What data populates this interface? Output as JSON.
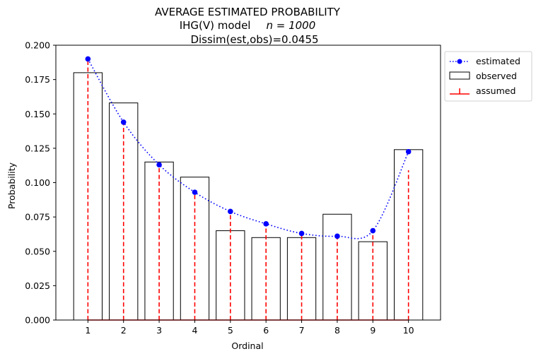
{
  "chart_data": {
    "type": "bar",
    "title_lines": [
      "AVERAGE ESTIMATED PROBABILITY",
      "IHG(V) model",
      "n = 1000",
      "Dissim(est,obs)=0.0455"
    ],
    "xlabel": "Ordinal",
    "ylabel": "Probability",
    "x": [
      1,
      2,
      3,
      4,
      5,
      6,
      7,
      8,
      9,
      10
    ],
    "x_ticks": [
      "1",
      "2",
      "3",
      "4",
      "5",
      "6",
      "7",
      "8",
      "9",
      "10"
    ],
    "ylim": [
      0,
      0.2
    ],
    "y_ticks": [
      "0.000",
      "0.025",
      "0.050",
      "0.075",
      "0.100",
      "0.125",
      "0.150",
      "0.175",
      "0.200"
    ],
    "y_tick_values": [
      0,
      0.025,
      0.05,
      0.075,
      0.1,
      0.125,
      0.15,
      0.175,
      0.2
    ],
    "series": [
      {
        "name": "estimated",
        "kind": "line-dotted-markers",
        "color": "#0000ff",
        "values": [
          0.19,
          0.144,
          0.113,
          0.093,
          0.079,
          0.07,
          0.063,
          0.061,
          0.065,
          0.1225
        ]
      },
      {
        "name": "observed",
        "kind": "bar-outline",
        "color": "#000000",
        "values": [
          0.18,
          0.158,
          0.115,
          0.104,
          0.065,
          0.06,
          0.06,
          0.077,
          0.057,
          0.124
        ]
      },
      {
        "name": "assumed",
        "kind": "stem-dashed",
        "color": "#ff0000",
        "values": [
          0.19,
          0.144,
          0.113,
          0.093,
          0.079,
          0.07,
          0.063,
          0.061,
          0.065,
          0.109
        ]
      }
    ],
    "legend": {
      "position": "outside-top-right",
      "items": [
        "estimated",
        "observed",
        "assumed"
      ]
    },
    "grid": false
  }
}
